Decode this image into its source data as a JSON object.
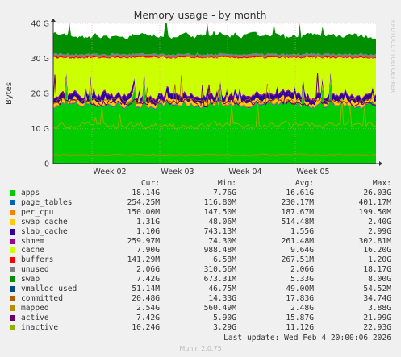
{
  "chart_data": {
    "type": "area",
    "title": "Memory usage - by month",
    "ylabel": "Bytes",
    "watermark": "RRDTOOL / TOBI OETIKER",
    "ylim": [
      0,
      40
    ],
    "yticks": [
      "0",
      "10 G",
      "20 G",
      "30 G",
      "40 G"
    ],
    "xticks": [
      "Week 02",
      "Week 03",
      "Week 04",
      "Week 05"
    ],
    "columns": [
      "Cur:",
      "Min:",
      "Avg:",
      "Max:"
    ],
    "series": [
      {
        "name": "apps",
        "color": "#00cc00",
        "cur": "18.14G",
        "min": "7.76G",
        "avg": "16.61G",
        "max": "26.03G"
      },
      {
        "name": "page_tables",
        "color": "#0066b3",
        "cur": "254.25M",
        "min": "116.80M",
        "avg": "230.17M",
        "max": "401.17M"
      },
      {
        "name": "per_cpu",
        "color": "#ff8000",
        "cur": "150.00M",
        "min": "147.50M",
        "avg": "187.67M",
        "max": "199.50M"
      },
      {
        "name": "swap_cache",
        "color": "#ffcc00",
        "cur": "1.31G",
        "min": "48.06M",
        "avg": "514.48M",
        "max": "2.40G"
      },
      {
        "name": "slab_cache",
        "color": "#330099",
        "cur": "1.10G",
        "min": "743.13M",
        "avg": "1.55G",
        "max": "2.99G"
      },
      {
        "name": "shmem",
        "color": "#990099",
        "cur": "259.97M",
        "min": "74.30M",
        "avg": "261.48M",
        "max": "302.81M"
      },
      {
        "name": "cache",
        "color": "#ccff00",
        "cur": "7.90G",
        "min": "988.48M",
        "avg": "9.64G",
        "max": "16.20G"
      },
      {
        "name": "buffers",
        "color": "#ff0000",
        "cur": "141.29M",
        "min": "6.58M",
        "avg": "267.51M",
        "max": "1.20G"
      },
      {
        "name": "unused",
        "color": "#808080",
        "cur": "2.06G",
        "min": "310.56M",
        "avg": "2.06G",
        "max": "18.17G"
      },
      {
        "name": "swap",
        "color": "#008f00",
        "cur": "7.42G",
        "min": "673.31M",
        "avg": "5.33G",
        "max": "8.00G"
      },
      {
        "name": "vmalloc_used",
        "color": "#00487d",
        "cur": "51.14M",
        "min": "46.75M",
        "avg": "49.00M",
        "max": "54.52M"
      },
      {
        "name": "committed",
        "color": "#b35a00",
        "cur": "20.48G",
        "min": "14.33G",
        "avg": "17.83G",
        "max": "34.74G"
      },
      {
        "name": "mapped",
        "color": "#b38f00",
        "cur": "2.54G",
        "min": "560.49M",
        "avg": "2.48G",
        "max": "3.88G"
      },
      {
        "name": "active",
        "color": "#6b006b",
        "cur": "7.42G",
        "min": "5.90G",
        "avg": "15.87G",
        "max": "21.99G"
      },
      {
        "name": "inactive",
        "color": "#8fb300",
        "cur": "10.24G",
        "min": "3.29G",
        "avg": "11.12G",
        "max": "22.93G"
      }
    ],
    "legend_colors": [
      "#00cc00",
      "#0066b3",
      "#ff8000",
      "#ffcc00",
      "#330099",
      "#990099",
      "#ccff00",
      "#ff0000",
      "#808080",
      "#008f00",
      "#00487d",
      "#b35a00",
      "#b38f00",
      "#6b006b",
      "#8fb300"
    ],
    "last_update": "Last update: Wed Feb  4 20:00:06 2026",
    "footer": "Munin 2.0.75"
  }
}
